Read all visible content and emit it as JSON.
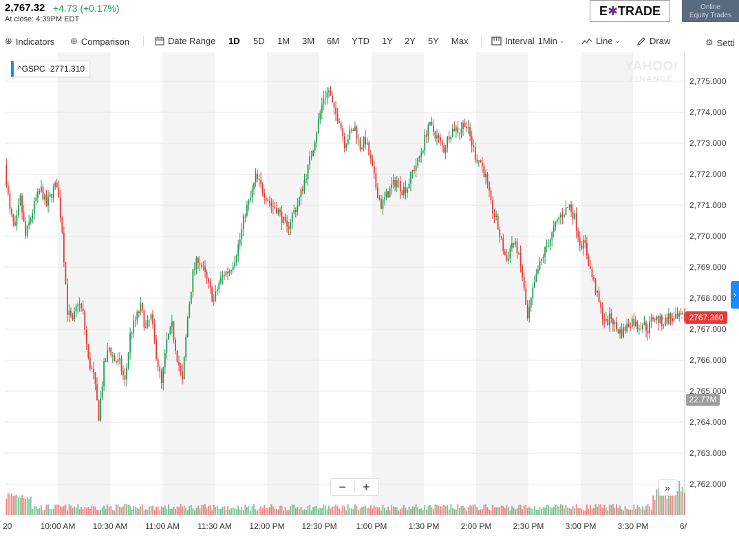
{
  "quote": {
    "price": "2,767.32",
    "change": "+4.73 (+0.17%)",
    "close_time": "At close: 4:39PM EDT"
  },
  "ad": {
    "brand": "E*TRADE",
    "brand_left": "E",
    "brand_star": "✱",
    "brand_right": "TRADE",
    "box_line1": "Online",
    "box_line2": "Equity Trades"
  },
  "toolbar": {
    "indicators": "Indicators",
    "comparison": "Comparison",
    "date_range": "Date Range",
    "periods": [
      "1D",
      "5D",
      "1M",
      "3M",
      "6M",
      "YTD",
      "1Y",
      "2Y",
      "5Y",
      "Max"
    ],
    "active_period": "1D",
    "interval_label": "Interval",
    "interval_value": "1Min",
    "line": "Line",
    "draw": "Draw",
    "settings": "Setti"
  },
  "legend": {
    "symbol": "^GSPC",
    "value": "2771.310"
  },
  "watermark": {
    "line1": "YAHOO!",
    "line2": "FINANCE"
  },
  "badges": {
    "last_price": "2767.360",
    "volume": "22.77M"
  },
  "controls": {
    "zoom_out": "−",
    "zoom_in": "+",
    "expand": "»",
    "side_tab": "›"
  },
  "colors": {
    "up": "#1e9d4f",
    "down": "#e53935",
    "band": "#f4f4f4",
    "grid": "#e9e9e9",
    "accent": "#1a8cff"
  },
  "chart_data": {
    "type": "candlestick",
    "title": "",
    "symbol": "^GSPC",
    "interval": "1Min",
    "ylim": [
      2761.6,
      2775.6
    ],
    "y_ticks": [
      "2,762.000",
      "2,763.000",
      "2,764.000",
      "2,765.000",
      "2,766.000",
      "2,767.000",
      "2,768.000",
      "2,769.000",
      "2,770.000",
      "2,771.000",
      "2,772.000",
      "2,773.000",
      "2,774.000",
      "2,775.000"
    ],
    "y_tick_values": [
      2762,
      2763,
      2764,
      2765,
      2766,
      2767,
      2768,
      2769,
      2770,
      2771,
      2772,
      2773,
      2774,
      2775
    ],
    "x_ticks": [
      "20",
      "10:00 AM",
      "10:30 AM",
      "11:00 AM",
      "11:30 AM",
      "12:00 PM",
      "12:30 PM",
      "1:00 PM",
      "1:30 PM",
      "2:00 PM",
      "2:30 PM",
      "3:00 PM",
      "3:30 PM",
      "6/"
    ],
    "x_tick_minutes": [
      0,
      30,
      60,
      90,
      120,
      150,
      180,
      210,
      240,
      270,
      300,
      330,
      360,
      390
    ],
    "price_path_minutes": [
      0,
      3,
      6,
      9,
      12,
      15,
      18,
      21,
      24,
      27,
      30,
      33,
      36,
      39,
      42,
      45,
      48,
      51,
      54,
      57,
      60,
      63,
      66,
      69,
      72,
      75,
      78,
      81,
      84,
      87,
      90,
      93,
      96,
      99,
      102,
      105,
      108,
      111,
      114,
      117,
      120,
      123,
      126,
      129,
      132,
      135,
      138,
      141,
      144,
      147,
      150,
      153,
      156,
      159,
      162,
      165,
      168,
      171,
      174,
      177,
      180,
      183,
      186,
      189,
      192,
      195,
      198,
      201,
      204,
      207,
      210,
      213,
      216,
      219,
      222,
      225,
      228,
      231,
      234,
      237,
      240,
      243,
      246,
      249,
      252,
      255,
      258,
      261,
      264,
      267,
      270,
      273,
      276,
      279,
      282,
      285,
      288,
      291,
      294,
      297,
      300,
      303,
      306,
      309,
      312,
      315,
      318,
      321,
      324,
      327,
      330,
      333,
      336,
      339,
      342,
      345,
      348,
      351,
      354,
      357,
      360,
      363,
      366,
      369,
      372,
      375,
      378,
      381,
      384,
      387,
      390
    ],
    "price_path": [
      2772.3,
      2770.8,
      2770.2,
      2771.2,
      2770.0,
      2770.6,
      2771.2,
      2771.5,
      2771.0,
      2771.4,
      2771.7,
      2770.2,
      2767.6,
      2767.2,
      2767.9,
      2767.5,
      2766.0,
      2765.5,
      2764.2,
      2765.8,
      2766.4,
      2766.0,
      2765.9,
      2765.3,
      2766.8,
      2767.3,
      2767.7,
      2767.0,
      2767.4,
      2766.2,
      2765.2,
      2766.6,
      2767.1,
      2766.1,
      2765.3,
      2767.4,
      2768.8,
      2769.3,
      2768.9,
      2768.4,
      2767.9,
      2768.5,
      2768.8,
      2768.9,
      2769.3,
      2769.9,
      2770.8,
      2771.2,
      2771.9,
      2771.6,
      2771.3,
      2771.0,
      2770.9,
      2770.6,
      2770.2,
      2770.7,
      2771.0,
      2771.6,
      2772.2,
      2772.9,
      2773.7,
      2774.5,
      2774.7,
      2774.0,
      2773.8,
      2773.0,
      2773.3,
      2773.5,
      2772.9,
      2773.1,
      2772.4,
      2771.6,
      2771.0,
      2771.3,
      2771.6,
      2771.8,
      2771.5,
      2771.6,
      2772.1,
      2772.4,
      2772.9,
      2773.6,
      2773.4,
      2773.1,
      2772.8,
      2773.3,
      2773.5,
      2773.4,
      2773.7,
      2773.2,
      2772.6,
      2772.4,
      2771.9,
      2771.0,
      2770.5,
      2769.8,
      2769.2,
      2769.8,
      2769.6,
      2768.7,
      2767.3,
      2768.2,
      2768.9,
      2769.4,
      2769.8,
      2770.2,
      2770.6,
      2770.8,
      2771.0,
      2770.6,
      2769.8,
      2769.7,
      2768.9,
      2768.3,
      2767.6,
      2767.2,
      2767.4,
      2767.0,
      2766.9,
      2767.1,
      2767.3,
      2767.1,
      2767.2,
      2767.0,
      2767.4,
      2767.3,
      2767.2,
      2767.4,
      2767.3,
      2767.36,
      2767.36
    ],
    "volume_unit": "M",
    "last_volume": 22.77,
    "last_price": 2767.36
  }
}
